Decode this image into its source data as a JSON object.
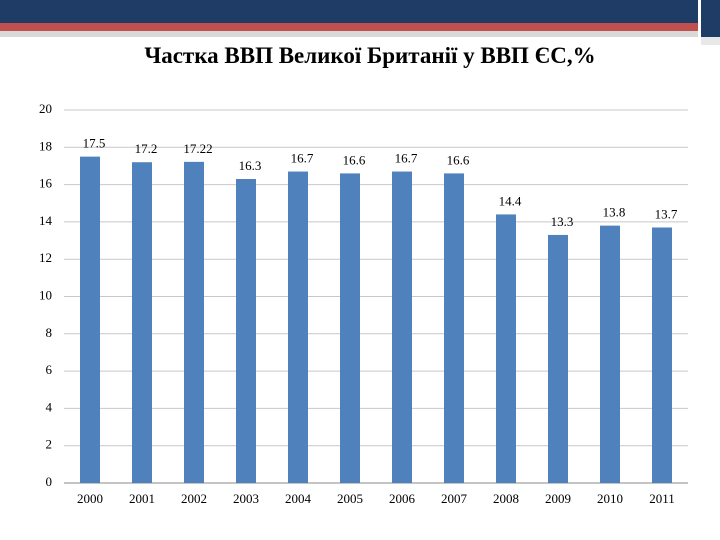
{
  "chart_data": {
    "type": "bar",
    "title": "Частка ВВП Великої Британії у ВВП ЄС,%",
    "categories": [
      "2000",
      "2001",
      "2002",
      "2003",
      "2004",
      "2005",
      "2006",
      "2007",
      "2008",
      "2009",
      "2010",
      "2011"
    ],
    "values": [
      17.5,
      17.2,
      17.22,
      16.3,
      16.7,
      16.6,
      16.7,
      16.6,
      14.4,
      13.3,
      13.8,
      13.7
    ],
    "color": "#4f81bd",
    "ylim": [
      0,
      20
    ],
    "yticks": [
      0,
      2,
      4,
      6,
      8,
      10,
      12,
      14,
      16,
      18,
      20
    ],
    "grid": true
  }
}
